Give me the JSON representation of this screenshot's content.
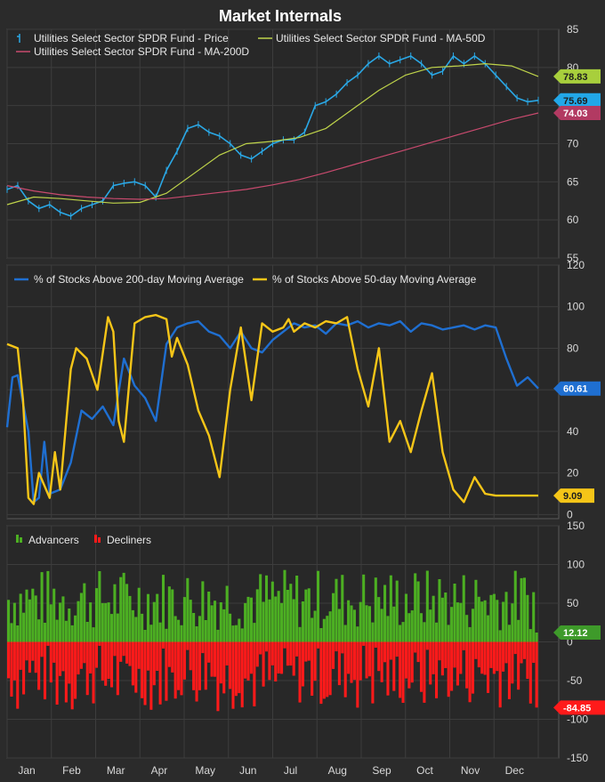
{
  "title": "Market Internals",
  "chart_data": [
    {
      "type": "line",
      "panel": "price",
      "ylim": [
        55,
        85
      ],
      "yticks": [
        55,
        60,
        65,
        70,
        75,
        80,
        85
      ],
      "series": [
        {
          "name": "Utilities Select Sector SPDR Fund - Price",
          "color": "#2aa8e6",
          "x": [
            0,
            0.02,
            0.04,
            0.06,
            0.08,
            0.1,
            0.12,
            0.14,
            0.16,
            0.18,
            0.2,
            0.22,
            0.24,
            0.26,
            0.28,
            0.3,
            0.32,
            0.34,
            0.36,
            0.38,
            0.4,
            0.42,
            0.44,
            0.46,
            0.48,
            0.5,
            0.52,
            0.54,
            0.56,
            0.58,
            0.6,
            0.62,
            0.64,
            0.66,
            0.68,
            0.7,
            0.72,
            0.74,
            0.76,
            0.78,
            0.8,
            0.82,
            0.84,
            0.86,
            0.88,
            0.9,
            0.92,
            0.94,
            0.96,
            0.98,
            1.0
          ],
          "values": [
            64,
            64.5,
            62.5,
            61.5,
            62,
            61,
            60.5,
            61.5,
            62,
            62.5,
            64.5,
            64.8,
            65,
            64.5,
            63,
            66.5,
            69,
            72,
            72.5,
            71.5,
            71,
            70,
            68.5,
            68,
            69,
            70,
            70.5,
            70.5,
            71.5,
            75,
            75.5,
            76.5,
            78,
            79,
            80.5,
            81.5,
            80.5,
            81,
            81.5,
            80.5,
            79,
            79.5,
            81.5,
            80.5,
            81.5,
            80.5,
            79,
            77.5,
            76,
            75.5,
            75.69
          ]
        },
        {
          "name": "Utilities Select Sector SPDR Fund - MA-50D",
          "color": "#bfd44a",
          "x": [
            0,
            0.05,
            0.1,
            0.15,
            0.2,
            0.25,
            0.3,
            0.35,
            0.4,
            0.45,
            0.5,
            0.55,
            0.6,
            0.65,
            0.7,
            0.75,
            0.8,
            0.85,
            0.9,
            0.95,
            1.0
          ],
          "values": [
            62,
            63,
            62.8,
            62.5,
            62.2,
            62.3,
            63.5,
            66,
            68.5,
            70,
            70.3,
            70.8,
            72,
            74.5,
            77,
            79,
            80,
            80.2,
            80.5,
            80.2,
            78.83
          ]
        },
        {
          "name": "Utilities Select Sector SPDR Fund - MA-200D",
          "color": "#c94a6e",
          "x": [
            0,
            0.05,
            0.1,
            0.15,
            0.2,
            0.25,
            0.3,
            0.35,
            0.4,
            0.45,
            0.5,
            0.55,
            0.6,
            0.65,
            0.7,
            0.75,
            0.8,
            0.85,
            0.9,
            0.95,
            1.0
          ],
          "values": [
            64.5,
            63.8,
            63.3,
            63,
            62.8,
            62.7,
            62.8,
            63.2,
            63.6,
            64,
            64.6,
            65.3,
            66.2,
            67.2,
            68.2,
            69.2,
            70.2,
            71.2,
            72.2,
            73.2,
            74.03
          ]
        }
      ],
      "last_values": [
        {
          "label": "78.83",
          "value": 78.83,
          "bg": "#a8cf3c",
          "fg": "#1e1e1e"
        },
        {
          "label": "75.69",
          "value": 75.69,
          "bg": "#22a7e8",
          "fg": "#1e1e1e"
        },
        {
          "label": "74.03",
          "value": 74.03,
          "bg": "#b23a62",
          "fg": "#ffffff"
        }
      ]
    },
    {
      "type": "line",
      "panel": "breadth",
      "ylim": [
        -2,
        120
      ],
      "yticks": [
        0,
        20,
        40,
        60,
        80,
        100,
        120
      ],
      "series": [
        {
          "name": "% of Stocks Above 200-day Moving Average",
          "color": "#1f6fd1",
          "x": [
            0,
            0.01,
            0.02,
            0.04,
            0.05,
            0.06,
            0.07,
            0.08,
            0.1,
            0.12,
            0.14,
            0.16,
            0.18,
            0.2,
            0.22,
            0.24,
            0.26,
            0.28,
            0.3,
            0.32,
            0.34,
            0.36,
            0.38,
            0.4,
            0.42,
            0.44,
            0.46,
            0.48,
            0.5,
            0.52,
            0.54,
            0.56,
            0.58,
            0.6,
            0.62,
            0.64,
            0.66,
            0.68,
            0.7,
            0.72,
            0.74,
            0.76,
            0.78,
            0.8,
            0.82,
            0.84,
            0.86,
            0.88,
            0.9,
            0.92,
            0.94,
            0.96,
            0.98,
            1.0
          ],
          "values": [
            42,
            66,
            67,
            40,
            6,
            8,
            35,
            10,
            12,
            25,
            50,
            46,
            52,
            43,
            75,
            62,
            56,
            45,
            82,
            90,
            92,
            93,
            88,
            86,
            80,
            88,
            80,
            78,
            84,
            88,
            92,
            90,
            91,
            87,
            92,
            91,
            93,
            90,
            92,
            91,
            93,
            88,
            92,
            91,
            89,
            90,
            91,
            89,
            91,
            90,
            75,
            62,
            66,
            60.61
          ]
        },
        {
          "name": "% of Stocks Above 50-day Moving Average",
          "color": "#f5c518",
          "x": [
            0,
            0.02,
            0.03,
            0.04,
            0.05,
            0.06,
            0.08,
            0.09,
            0.1,
            0.12,
            0.13,
            0.15,
            0.17,
            0.19,
            0.2,
            0.21,
            0.22,
            0.24,
            0.26,
            0.28,
            0.3,
            0.31,
            0.32,
            0.34,
            0.36,
            0.38,
            0.4,
            0.42,
            0.44,
            0.46,
            0.48,
            0.5,
            0.52,
            0.53,
            0.54,
            0.56,
            0.58,
            0.6,
            0.62,
            0.64,
            0.66,
            0.68,
            0.7,
            0.72,
            0.74,
            0.76,
            0.78,
            0.8,
            0.82,
            0.84,
            0.86,
            0.88,
            0.9,
            0.92,
            0.94,
            0.96,
            0.98,
            1.0
          ],
          "values": [
            82,
            80,
            55,
            8,
            5,
            20,
            8,
            30,
            12,
            70,
            80,
            75,
            60,
            95,
            88,
            45,
            35,
            92,
            95,
            96,
            94,
            76,
            85,
            72,
            50,
            38,
            18,
            60,
            90,
            55,
            92,
            88,
            90,
            94,
            88,
            92,
            90,
            93,
            92,
            95,
            70,
            52,
            80,
            35,
            45,
            30,
            50,
            68,
            30,
            12,
            6,
            18,
            10,
            9.09,
            9.09,
            9.09,
            9.09,
            9.09
          ]
        }
      ],
      "last_values": [
        {
          "label": "60.61",
          "value": 60.61,
          "bg": "#1f6fd1",
          "fg": "#ffffff"
        },
        {
          "label": "9.09",
          "value": 9.09,
          "bg": "#f5c518",
          "fg": "#1e1e1e"
        }
      ]
    },
    {
      "type": "bar",
      "panel": "advdec",
      "ylim": [
        -150,
        150
      ],
      "yticks": [
        150,
        100,
        50,
        0,
        -50,
        -100,
        -150
      ],
      "series": [
        {
          "name": "Advancers",
          "color": "#4caf22"
        },
        {
          "name": "Decliners",
          "color": "#ff1a1a"
        }
      ],
      "last_values": [
        {
          "label": "12.12",
          "value": 12.12,
          "bg": "#3e9a2a",
          "fg": "#ffffff"
        },
        {
          "label": "-84.85",
          "value": -84.85,
          "bg": "#ff1a1a",
          "fg": "#ffffff"
        }
      ]
    }
  ],
  "months": [
    "Jan",
    "Feb",
    "Mar",
    "Apr",
    "May",
    "Jun",
    "Jul",
    "Aug",
    "Sep",
    "Oct",
    "Nov",
    "Dec"
  ]
}
